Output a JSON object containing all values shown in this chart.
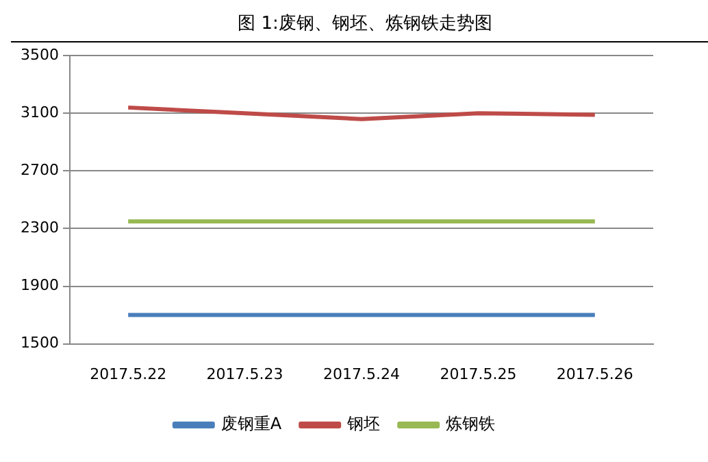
{
  "chart_data": {
    "type": "line",
    "title": "图 1:废钢、钢坯、炼钢铁走势图",
    "categories": [
      "2017.5.22",
      "2017.5.23",
      "2017.5.24",
      "2017.5.25",
      "2017.5.26"
    ],
    "series": [
      {
        "name": "废钢重A",
        "color": "#4a7ebb",
        "values": [
          1700,
          1700,
          1700,
          1700,
          1700
        ]
      },
      {
        "name": "钢坯",
        "color": "#be4b48",
        "values": [
          3140,
          3100,
          3060,
          3100,
          3090
        ]
      },
      {
        "name": "炼钢铁",
        "color": "#98b954",
        "values": [
          2350,
          2350,
          2350,
          2350,
          2350
        ]
      }
    ],
    "ylim": [
      1500,
      3500
    ],
    "yticks": [
      1500,
      1900,
      2300,
      2700,
      3100,
      3500
    ],
    "grid": "y",
    "legend": "bottom",
    "marker": "none",
    "line_style": "solid"
  }
}
